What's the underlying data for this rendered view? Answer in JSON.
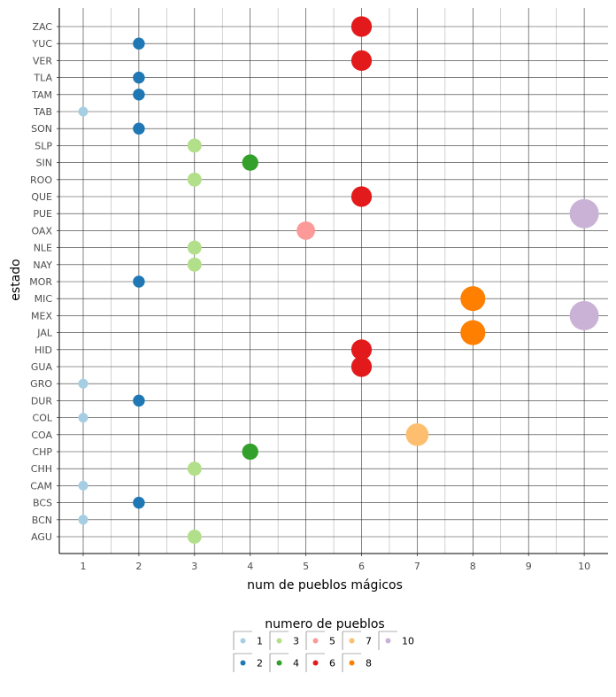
{
  "chart_data": {
    "type": "scatter",
    "xlabel": "num de pueblos mágicos",
    "ylabel": "estado",
    "xlim": [
      0.6,
      10.45
    ],
    "x_ticks": [
      1,
      2,
      3,
      4,
      5,
      6,
      7,
      8,
      9,
      10
    ],
    "categories": [
      "AGU",
      "BCN",
      "BCS",
      "CAM",
      "CHH",
      "CHP",
      "COA",
      "COL",
      "DUR",
      "GRO",
      "GUA",
      "HID",
      "JAL",
      "MEX",
      "MIC",
      "MOR",
      "NAY",
      "NLE",
      "OAX",
      "PUE",
      "QUE",
      "ROO",
      "SIN",
      "SLP",
      "SON",
      "TAB",
      "TAM",
      "TLA",
      "VER",
      "YUC",
      "ZAC"
    ],
    "points": [
      {
        "estado": "AGU",
        "value": 3
      },
      {
        "estado": "BCN",
        "value": 1
      },
      {
        "estado": "BCS",
        "value": 2
      },
      {
        "estado": "CAM",
        "value": 1
      },
      {
        "estado": "CHH",
        "value": 3
      },
      {
        "estado": "CHP",
        "value": 4
      },
      {
        "estado": "COA",
        "value": 7
      },
      {
        "estado": "COL",
        "value": 1
      },
      {
        "estado": "DUR",
        "value": 2
      },
      {
        "estado": "GRO",
        "value": 1
      },
      {
        "estado": "GUA",
        "value": 6
      },
      {
        "estado": "HID",
        "value": 6
      },
      {
        "estado": "JAL",
        "value": 8
      },
      {
        "estado": "MEX",
        "value": 10
      },
      {
        "estado": "MIC",
        "value": 8
      },
      {
        "estado": "MOR",
        "value": 2
      },
      {
        "estado": "NAY",
        "value": 3
      },
      {
        "estado": "NLE",
        "value": 3
      },
      {
        "estado": "OAX",
        "value": 5
      },
      {
        "estado": "PUE",
        "value": 10
      },
      {
        "estado": "QUE",
        "value": 6
      },
      {
        "estado": "ROO",
        "value": 3
      },
      {
        "estado": "SIN",
        "value": 4
      },
      {
        "estado": "SLP",
        "value": 3
      },
      {
        "estado": "SON",
        "value": 2
      },
      {
        "estado": "TAB",
        "value": 1
      },
      {
        "estado": "TAM",
        "value": 2
      },
      {
        "estado": "TLA",
        "value": 2
      },
      {
        "estado": "VER",
        "value": 6
      },
      {
        "estado": "YUC",
        "value": 2
      },
      {
        "estado": "ZAC",
        "value": 6
      }
    ],
    "legend": {
      "title": "numero de pueblos",
      "placement": "bottom",
      "entries": [
        {
          "label": "1",
          "color": "#a6cee3"
        },
        {
          "label": "2",
          "color": "#1f78b4"
        },
        {
          "label": "3",
          "color": "#b2df8a"
        },
        {
          "label": "4",
          "color": "#33a02c"
        },
        {
          "label": "5",
          "color": "#fb9a99"
        },
        {
          "label": "6",
          "color": "#e31a1c"
        },
        {
          "label": "7",
          "color": "#fdbf6f"
        },
        {
          "label": "8",
          "color": "#ff7f00"
        },
        {
          "label": "10",
          "color": "#cab2d6"
        }
      ]
    },
    "grid": true
  }
}
